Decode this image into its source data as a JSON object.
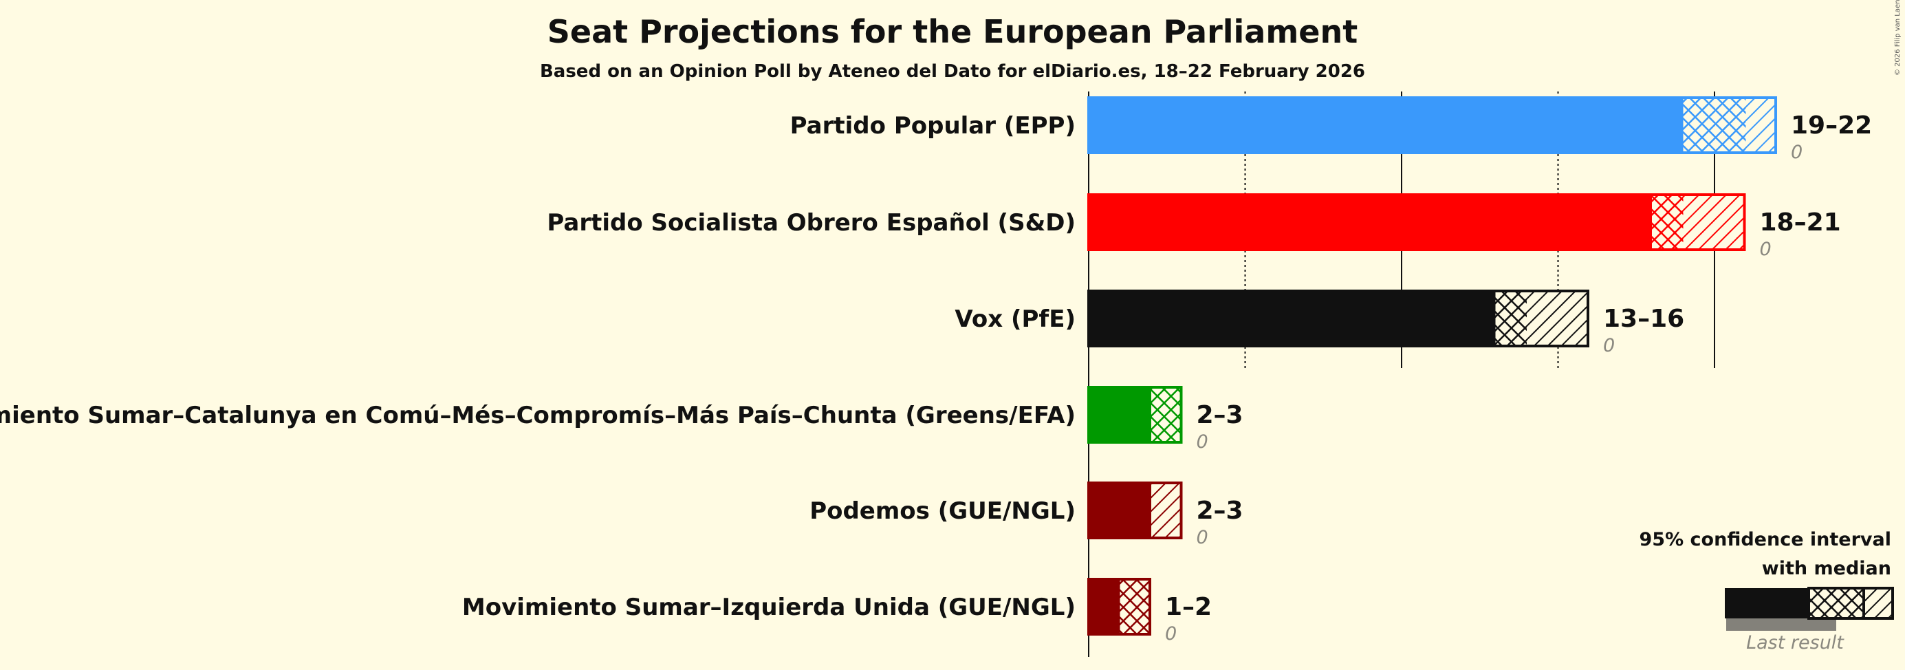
{
  "chart_data": {
    "type": "bar",
    "title": "Seat Projections for the European Parliament",
    "subtitle": "Based on an Opinion Poll by Ateneo del Dato for elDiario.es, 18–22 February 2026",
    "copyright": "© 2026 Filip van Laenen",
    "xlim": [
      0,
      25
    ],
    "gridlines": [
      5,
      10,
      15,
      20
    ],
    "series": [
      {
        "name": "Partido Popular (EPP)",
        "low": 19,
        "median": 21,
        "high": 22,
        "range_label": "19–22",
        "last_result": 0,
        "last_label": "0",
        "color": "#3a99fb"
      },
      {
        "name": "Partido Socialista Obrero Español (S&D)",
        "low": 18,
        "median": 19,
        "high": 21,
        "range_label": "18–21",
        "last_result": 0,
        "last_label": "0",
        "color": "#ff0000"
      },
      {
        "name": "Vox (PfE)",
        "low": 13,
        "median": 14,
        "high": 16,
        "range_label": "13–16",
        "last_result": 0,
        "last_label": "0",
        "color": "#111111"
      },
      {
        "name": "Movimiento Sumar–Catalunya en Comú–Més–Compromís–Más País–Chunta (Greens/EFA)",
        "low": 2,
        "median": 3,
        "high": 3,
        "range_label": "2–3",
        "last_result": 0,
        "last_label": "0",
        "color": "#009900"
      },
      {
        "name": "Podemos (GUE/NGL)",
        "low": 2,
        "median": 2,
        "high": 3,
        "range_label": "2–3",
        "last_result": 0,
        "last_label": "0",
        "color": "#8b0000"
      },
      {
        "name": "Movimiento Sumar–Izquierda Unida (GUE/NGL)",
        "low": 1,
        "median": 2,
        "high": 2,
        "range_label": "1–2",
        "last_result": 0,
        "last_label": "0",
        "color": "#8b0000"
      }
    ],
    "legend": {
      "line1": "95% confidence interval",
      "line2": "with median",
      "last_result": "Last result",
      "placement": "bottom-right"
    }
  }
}
